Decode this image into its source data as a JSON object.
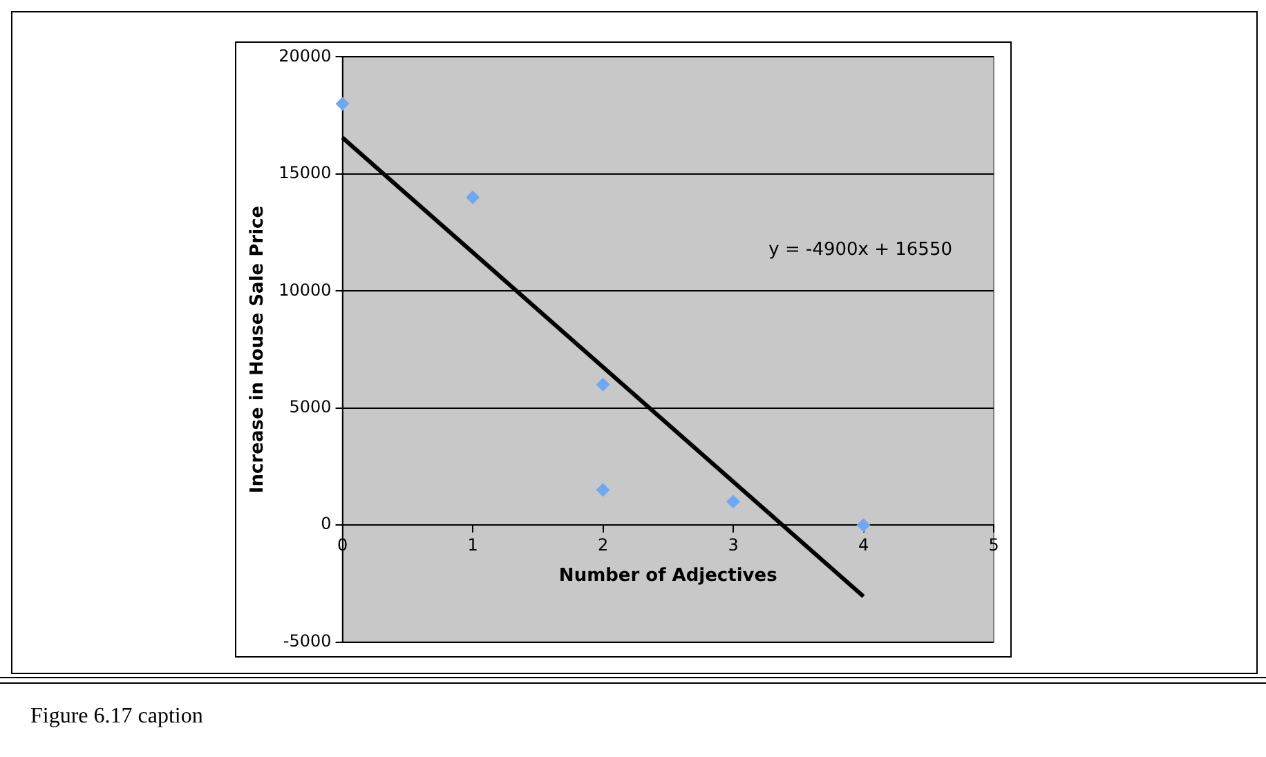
{
  "chart_data": {
    "type": "scatter",
    "xlabel": "Number of Adjectives",
    "ylabel": "Increase in House Sale Price",
    "xlim": [
      0,
      5
    ],
    "xticks": [
      0,
      1,
      2,
      3,
      4,
      5
    ],
    "ylim": [
      -5000,
      20000
    ],
    "yticks": [
      -5000,
      0,
      5000,
      10000,
      15000,
      20000
    ],
    "grid": "y",
    "legend": false,
    "marker": "diamond",
    "series": [
      {
        "type": "scatter",
        "color": "#6fa8f0",
        "x": [
          0,
          1,
          2,
          2,
          3,
          4
        ],
        "values": [
          18000,
          14000,
          6000,
          1500,
          1000,
          0
        ]
      },
      {
        "type": "line",
        "color": "#000000",
        "marker": "none",
        "x": [
          0,
          4
        ],
        "values": [
          16550,
          -3050
        ]
      }
    ],
    "annotations": [
      "y = -4900x + 16550",
      "Figure 6.17 caption"
    ]
  }
}
